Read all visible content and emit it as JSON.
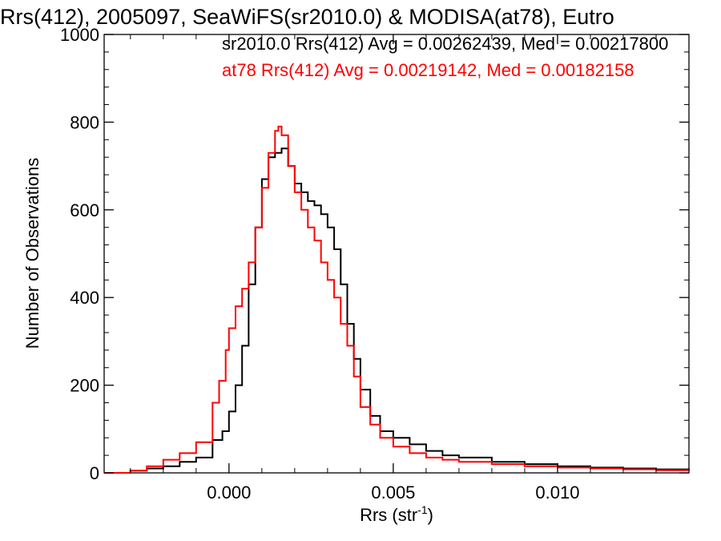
{
  "chart_data": {
    "type": "line",
    "title": "Rrs(412), 2005097, SeaWiFS(sr2010.0) & MODISA(at78), Eutro",
    "xlabel": "Rrs (str",
    "xlabel_sup": "-1",
    "xlabel_close": ")",
    "ylabel": "Number of Observations",
    "xlim": [
      -0.0038,
      0.014
    ],
    "ylim": [
      0,
      1000
    ],
    "xticks": [
      0.0,
      0.005,
      0.01
    ],
    "xtick_labels": [
      "0.000",
      "0.005",
      "0.010"
    ],
    "yticks": [
      0,
      200,
      400,
      600,
      800,
      1000
    ],
    "ytick_labels": [
      "0",
      "200",
      "400",
      "600",
      "800",
      "1000"
    ],
    "grid": false,
    "legend": {
      "placement": "top",
      "entries": [
        {
          "text": "sr2010.0 Rrs(412) Avg = 0.00262439, Med = 0.00217800",
          "color": "#000000"
        },
        {
          "text": "at78 Rrs(412) Avg = 0.00219142, Med = 0.00182158",
          "color": "#ff0000"
        }
      ]
    },
    "series": [
      {
        "color": "#000000",
        "step": true,
        "x": [
          -0.0038,
          -0.003,
          -0.0025,
          -0.002,
          -0.0015,
          -0.001,
          -0.0005,
          -0.0002,
          0.0,
          0.0002,
          0.0004,
          0.0006,
          0.0008,
          0.001,
          0.0012,
          0.0014,
          0.0016,
          0.0018,
          0.002,
          0.0022,
          0.0024,
          0.0026,
          0.0028,
          0.003,
          0.0032,
          0.0034,
          0.0036,
          0.0038,
          0.004,
          0.0043,
          0.0046,
          0.005,
          0.0055,
          0.006,
          0.0065,
          0.007,
          0.008,
          0.009,
          0.01,
          0.011,
          0.012,
          0.013,
          0.014
        ],
        "y": [
          0,
          5,
          10,
          15,
          25,
          35,
          75,
          95,
          140,
          200,
          290,
          430,
          560,
          670,
          720,
          730,
          740,
          700,
          660,
          640,
          620,
          610,
          590,
          560,
          510,
          430,
          340,
          260,
          190,
          130,
          95,
          80,
          65,
          50,
          40,
          35,
          25,
          20,
          15,
          12,
          10,
          8,
          5
        ]
      },
      {
        "color": "#ff0000",
        "step": true,
        "x": [
          -0.0038,
          -0.003,
          -0.0025,
          -0.002,
          -0.0015,
          -0.001,
          -0.0005,
          -0.0003,
          -0.0001,
          0.0,
          0.0002,
          0.0004,
          0.0006,
          0.0008,
          0.001,
          0.0012,
          0.0014,
          0.0015,
          0.0016,
          0.0018,
          0.002,
          0.0022,
          0.0024,
          0.0026,
          0.0028,
          0.003,
          0.0032,
          0.0034,
          0.0036,
          0.0038,
          0.004,
          0.0043,
          0.0046,
          0.005,
          0.0055,
          0.006,
          0.0065,
          0.007,
          0.008,
          0.009,
          0.01,
          0.011,
          0.012,
          0.013,
          0.014
        ],
        "y": [
          0,
          5,
          15,
          30,
          45,
          70,
          160,
          210,
          280,
          330,
          380,
          420,
          480,
          560,
          650,
          730,
          780,
          790,
          770,
          700,
          640,
          600,
          560,
          530,
          480,
          440,
          400,
          340,
          290,
          220,
          150,
          110,
          80,
          60,
          45,
          35,
          30,
          25,
          20,
          15,
          12,
          10,
          8,
          6,
          5
        ]
      }
    ]
  }
}
